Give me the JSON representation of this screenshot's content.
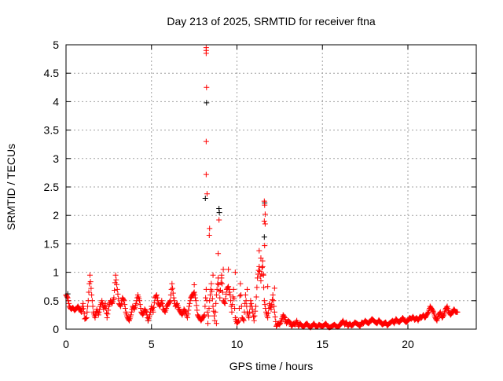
{
  "chart_data": {
    "type": "scatter",
    "title": "Day 213 of 2025, SRMTID for receiver ftna",
    "xlabel": "GPS time / hours",
    "ylabel": "SRMTID / TECUs",
    "xlim": [
      0,
      24
    ],
    "ylim": [
      0,
      5
    ],
    "xticks": [
      "0",
      "5",
      "10",
      "15",
      "20"
    ],
    "xtick_values": [
      0,
      5,
      10,
      15,
      20
    ],
    "yticks": [
      "0",
      "0.5",
      "1",
      "1.5",
      "2",
      "2.5",
      "3",
      "3.5",
      "4",
      "4.5",
      "5"
    ],
    "ytick_values": [
      0,
      0.5,
      1,
      1.5,
      2,
      2.5,
      3,
      3.5,
      4,
      4.5,
      5
    ],
    "grid": true,
    "marker": "plus",
    "series": [
      {
        "name": "",
        "color": "#000000",
        "x": [
          8.22,
          8.15,
          8.95,
          8.97,
          11.6,
          11.62,
          0.1,
          4.8
        ],
        "y": [
          3.98,
          2.3,
          2.12,
          2.05,
          1.62,
          2.22,
          0.62,
          0.15
        ]
      },
      {
        "name": "",
        "color": "#ff0000",
        "x_start": 0,
        "x_step": 0.1,
        "y": [
          0.6,
          0.55,
          0.4,
          0.35,
          0.38,
          0.33,
          0.36,
          0.4,
          0.35,
          0.3,
          0.45,
          0.18,
          0.2,
          0.5,
          0.95,
          0.6,
          0.3,
          0.2,
          0.35,
          0.25,
          0.4,
          0.5,
          0.35,
          0.45,
          0.2,
          0.4,
          0.5,
          0.45,
          0.55,
          0.95,
          0.7,
          0.45,
          0.4,
          0.55,
          0.5,
          0.3,
          0.2,
          0.15,
          0.25,
          0.4,
          0.35,
          0.45,
          0.6,
          0.5,
          0.3,
          0.25,
          0.35,
          0.3,
          0.15,
          0.25,
          0.4,
          0.3,
          0.55,
          0.6,
          0.45,
          0.4,
          0.5,
          0.35,
          0.3,
          0.4,
          0.45,
          0.5,
          0.8,
          0.55,
          0.4,
          0.45,
          0.35,
          0.3,
          0.25,
          0.35,
          0.3,
          0.2,
          0.4,
          0.55,
          0.6,
          0.65,
          0.5,
          0.25,
          0.2,
          0.15,
          0.2,
          0.25,
          0.7,
          0.1,
          0.5,
          0.8,
          0.4,
          0.15,
          0.6,
          0.9,
          0.55,
          0.95,
          0.5,
          0.45,
          0.7,
          0.75,
          0.6,
          0.3,
          0.7,
          0.2,
          0.1,
          0.15,
          0.8,
          0.2,
          0.15,
          0.6,
          0.3,
          0.2,
          0.5,
          0.35,
          0.15,
          0.4,
          0.9,
          1.1,
          0.85,
          1.2,
          0.5,
          0.3,
          0.2,
          0.45,
          0.35,
          0.6,
          0.3,
          0.05,
          0.1,
          0.08,
          0.15,
          0.25,
          0.2,
          0.1,
          0.15,
          0.12,
          0.05,
          0.1,
          0.08,
          0.15,
          0.05,
          0.1,
          0.06,
          0.04,
          0.08,
          0.1,
          0.05,
          0.03,
          0.06,
          0.1,
          0.05,
          0.04,
          0.08,
          0.06,
          0.05,
          0.07,
          0.1,
          0.05,
          0.03,
          0.04,
          0.06,
          0.08,
          0.05,
          0.04,
          0.06,
          0.1,
          0.15,
          0.08,
          0.12,
          0.05,
          0.1,
          0.06,
          0.08,
          0.12,
          0.1,
          0.08,
          0.05,
          0.12,
          0.1,
          0.15,
          0.12,
          0.1,
          0.14,
          0.18,
          0.15,
          0.12,
          0.1,
          0.16,
          0.12,
          0.08,
          0.1,
          0.12,
          0.06,
          0.1,
          0.12,
          0.15,
          0.1,
          0.18,
          0.14,
          0.12,
          0.16,
          0.2,
          0.15,
          0.12,
          0.15,
          0.2,
          0.18,
          0.22,
          0.16,
          0.2,
          0.15,
          0.22,
          0.2,
          0.25,
          0.2,
          0.25,
          0.3,
          0.4,
          0.35,
          0.3,
          0.2,
          0.15,
          0.25,
          0.3,
          0.2,
          0.25,
          0.35,
          0.4,
          0.3,
          0.25,
          0.3,
          0.35,
          0.3,
          0.3
        ],
        "extra_points": [
          [
            8.2,
            4.95
          ],
          [
            8.2,
            4.9
          ],
          [
            8.2,
            4.85
          ],
          [
            8.22,
            4.25
          ],
          [
            8.2,
            3.3
          ],
          [
            8.2,
            2.72
          ],
          [
            8.25,
            2.38
          ],
          [
            8.4,
            1.77
          ],
          [
            8.38,
            1.65
          ],
          [
            8.95,
            1.92
          ],
          [
            8.9,
            1.33
          ],
          [
            11.6,
            2.25
          ],
          [
            11.62,
            2.18
          ],
          [
            11.65,
            2.02
          ],
          [
            11.6,
            1.9
          ],
          [
            11.65,
            1.85
          ],
          [
            11.62,
            1.47
          ],
          [
            11.3,
            1.38
          ],
          [
            11.4,
            1.25
          ],
          [
            11.5,
            1.1
          ],
          [
            11.55,
            0.95
          ],
          [
            9.2,
            1.05
          ],
          [
            9.5,
            1.05
          ],
          [
            9.1,
            0.9
          ],
          [
            8.6,
            0.95
          ],
          [
            9.9,
            1.0
          ],
          [
            8.8,
            0.1
          ],
          [
            10.6,
            0.7
          ],
          [
            7.5,
            0.78
          ],
          [
            11.8,
            0.75
          ],
          [
            12.2,
            0.72
          ]
        ]
      }
    ]
  }
}
